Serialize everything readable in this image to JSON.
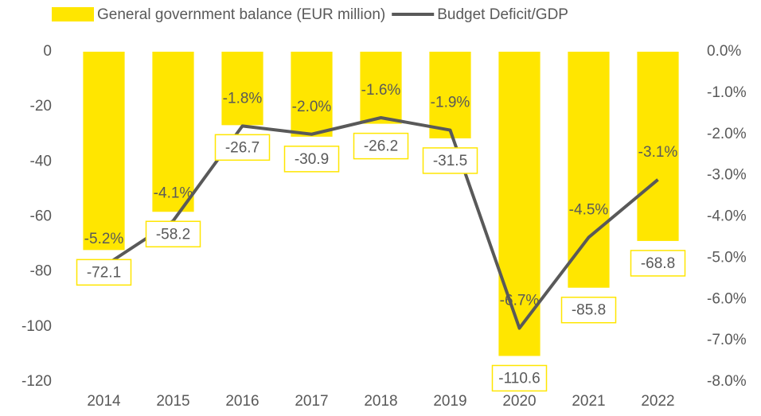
{
  "chart_data": {
    "type": "bar",
    "categories": [
      "2014",
      "2015",
      "2016",
      "2017",
      "2018",
      "2019",
      "2020",
      "2021",
      "2022"
    ],
    "series": [
      {
        "name": "General government balance (EUR million)",
        "type": "bar",
        "color": "#FFE600",
        "label_box_color": "#FFE600",
        "values": [
          -72.1,
          -58.2,
          -26.7,
          -30.9,
          -26.2,
          -31.5,
          -110.6,
          -85.8,
          -68.8
        ]
      },
      {
        "name": "Budget Deficit/GDP",
        "type": "line",
        "axis": "y2",
        "color": "#595959",
        "values": [
          -5.2,
          -4.1,
          -1.8,
          -2.0,
          -1.6,
          -1.9,
          -6.7,
          -4.5,
          -3.1
        ],
        "value_labels": [
          "-5.2%",
          "-4.1%",
          "-1.8%",
          "-2.0%",
          "-1.6%",
          "-1.9%",
          "-6.7%",
          "-4.5%",
          "-3.1%"
        ]
      }
    ],
    "ylim": [
      -120,
      0
    ],
    "yticks": [
      0,
      -20,
      -40,
      -60,
      -80,
      -100,
      -120
    ],
    "y2lim": [
      -8,
      0
    ],
    "y2ticks": [
      {
        "value": 0,
        "label": "0.0%"
      },
      {
        "value": -1,
        "label": "-1.0%"
      },
      {
        "value": -2,
        "label": "-2.0%"
      },
      {
        "value": -3,
        "label": "-3.0%"
      },
      {
        "value": -4,
        "label": "-4.0%"
      },
      {
        "value": -5,
        "label": "-5.0%"
      },
      {
        "value": -6,
        "label": "-6.0%"
      },
      {
        "value": -7,
        "label": "-7.0%"
      },
      {
        "value": -8,
        "label": "-8.0%"
      }
    ],
    "legend": "top"
  }
}
